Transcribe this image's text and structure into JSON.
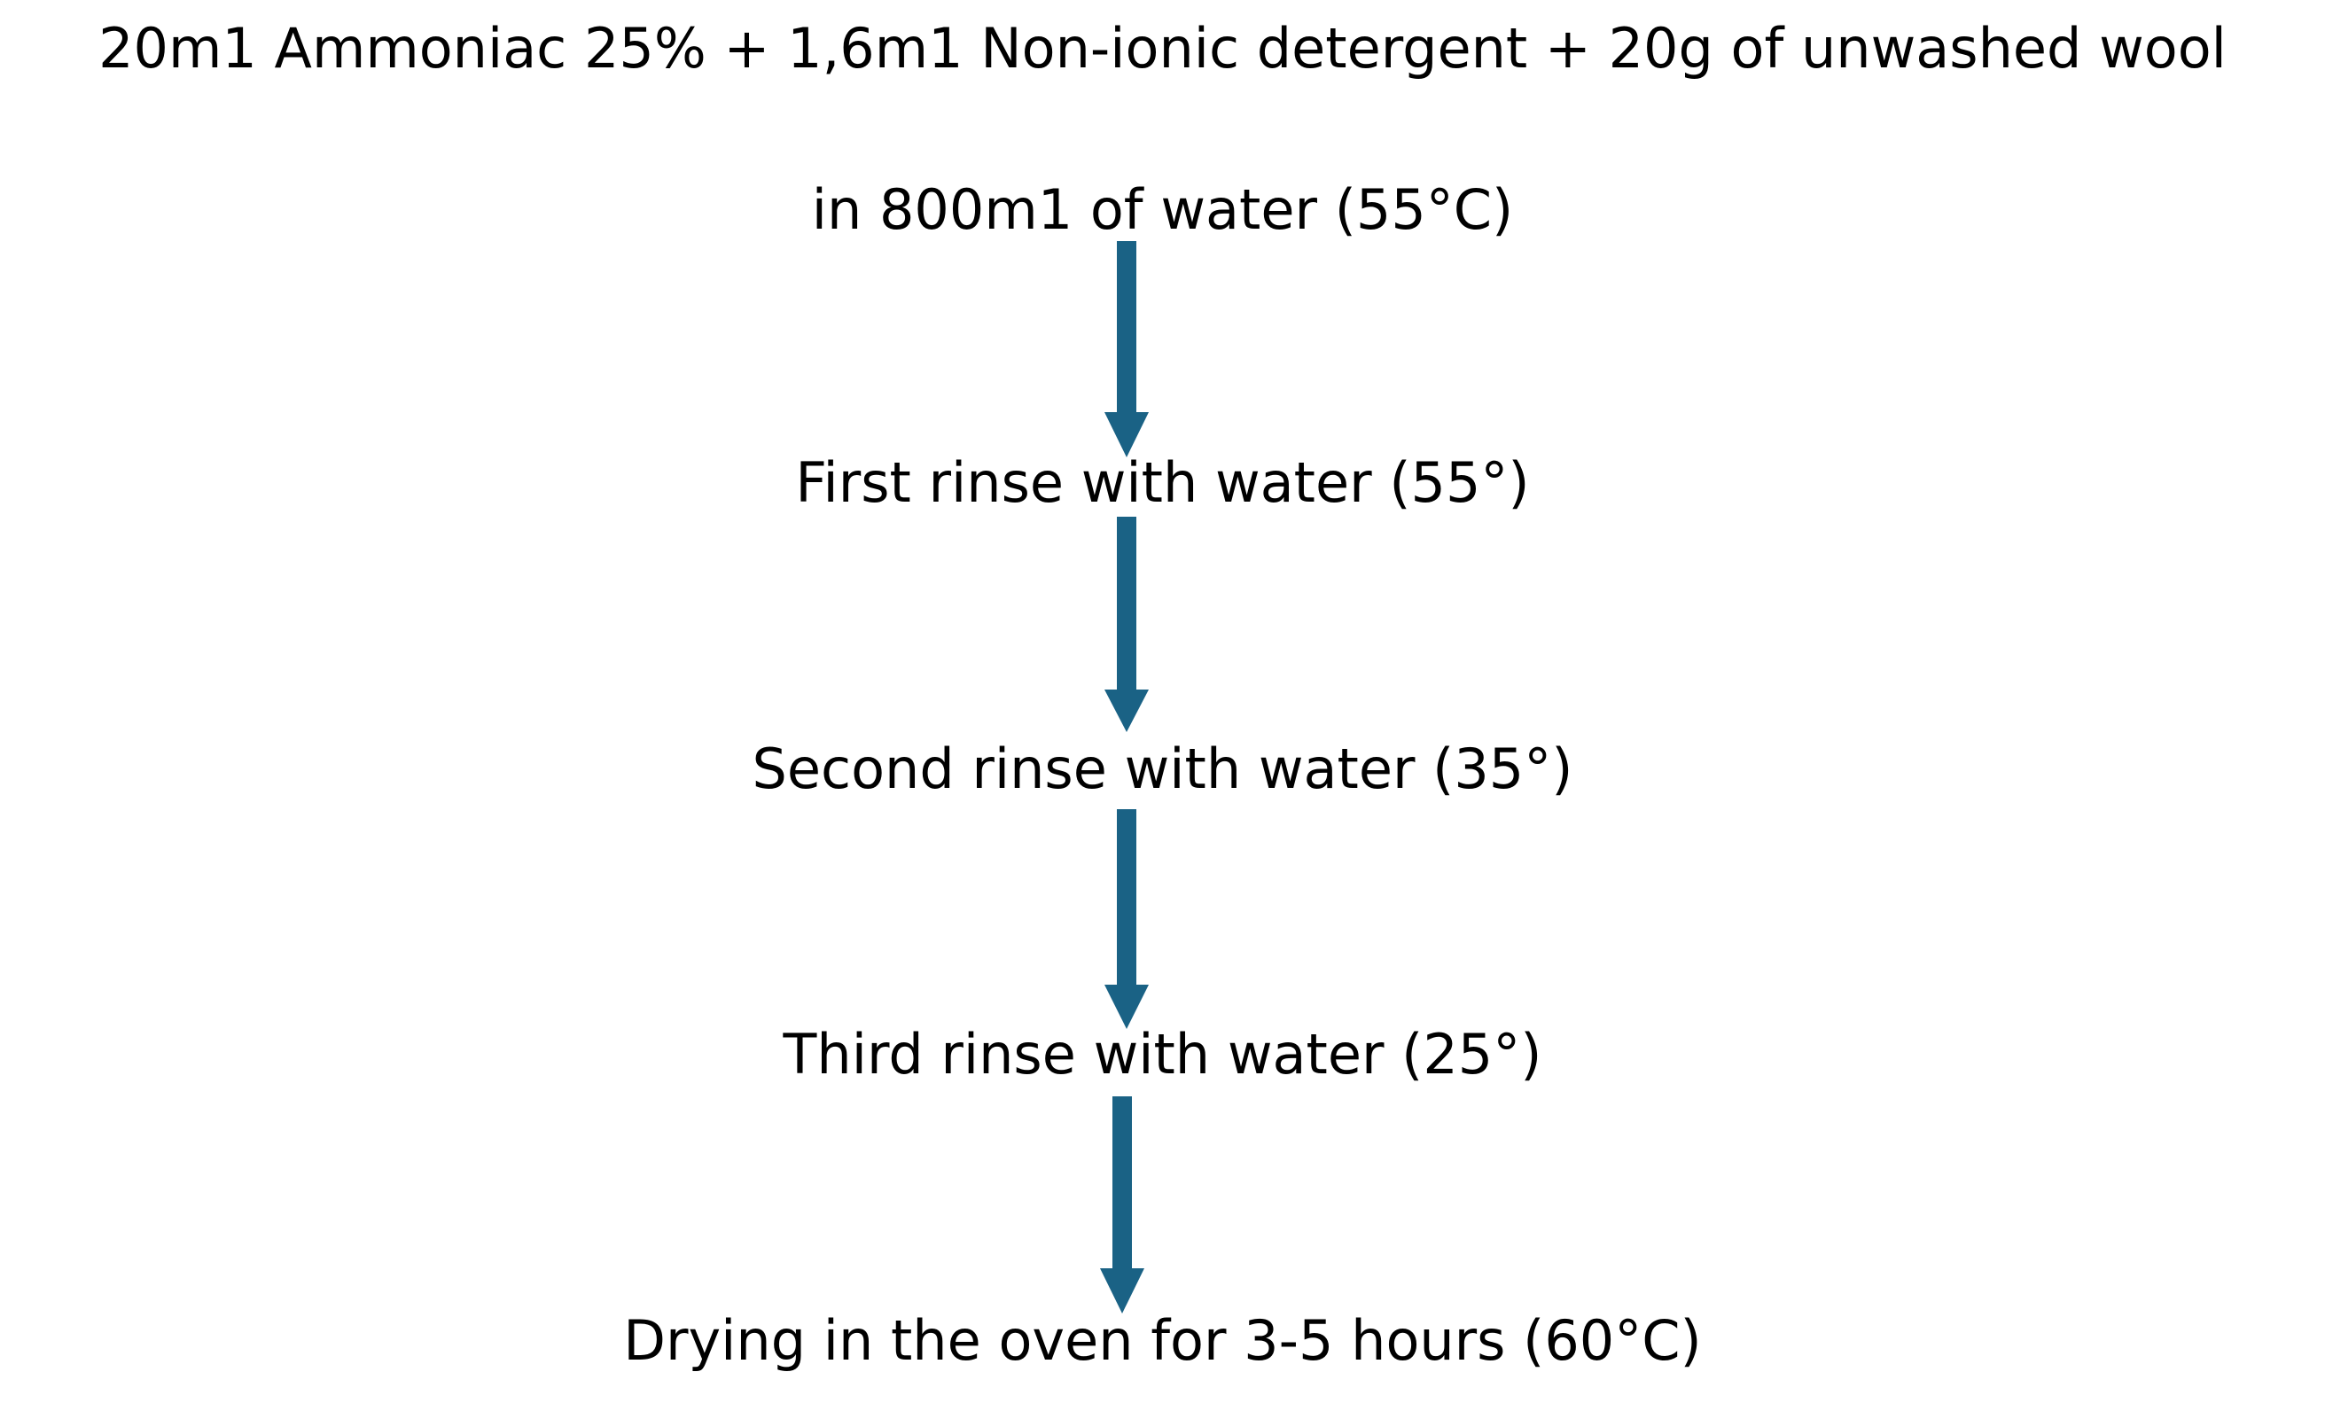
{
  "steps": [
    {
      "lines": [
        "20m1 Ammoniac 25% + 1,6m1 Non-ionic detergent + 20g of unwashed wool",
        "in 800m1 of water (55°C)"
      ]
    },
    {
      "lines": [
        "First rinse with water (55°)"
      ]
    },
    {
      "lines": [
        "Second rinse with water (35°)"
      ]
    },
    {
      "lines": [
        "Third rinse with water (25°)"
      ]
    },
    {
      "lines": [
        "Drying in the oven for 3-5 hours (60°C)"
      ]
    }
  ],
  "colors": {
    "arrow": "#1A6285",
    "text": "#000000"
  }
}
